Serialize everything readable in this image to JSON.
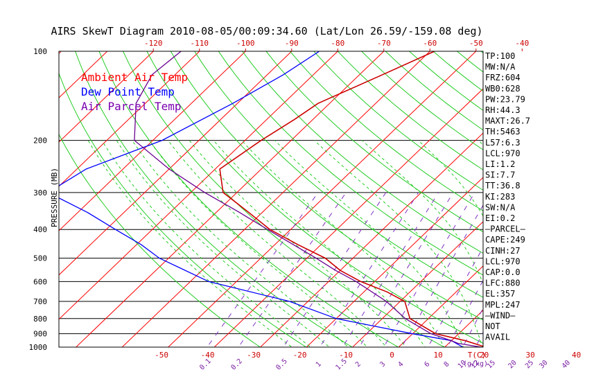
{
  "chart_data": {
    "type": "line",
    "title": "AIRS SkewT Diagram 2010-08-05/00:09:34.60 (Lat/Lon 26.59/-159.08 deg)",
    "ylabel": "PRESSURE (MB)",
    "xlabel_unit": "T(C)",
    "mix_unit": "(g/kg)",
    "pressure_ticks": [
      100,
      200,
      300,
      400,
      500,
      600,
      700,
      800,
      900,
      1000
    ],
    "top_temp_ticks": [
      -120,
      -110,
      -100,
      -90,
      -80,
      -70,
      -60,
      -50,
      -40
    ],
    "bottom_temp_ticks": [
      -50,
      -40,
      -30,
      -20,
      -10,
      0,
      10,
      20,
      30,
      40
    ],
    "mixing_ratio_ticks": [
      "0.1",
      "0.2",
      "0.5",
      "1",
      "1.5",
      "2",
      "3",
      "4",
      "6",
      "8",
      "10",
      "12",
      "15",
      "20",
      "25",
      "30",
      "40"
    ],
    "legend": [
      {
        "label": "Ambient Air Temp",
        "color": "#ff0000"
      },
      {
        "label": "Dew Point Temp",
        "color": "#0000ff"
      },
      {
        "label": "Air Parcel Temp",
        "color": "#7a00b0"
      }
    ],
    "series": [
      {
        "name": "Ambient Air Temp",
        "color": "#cc0000",
        "points": [
          [
            100,
            -59
          ],
          [
            120,
            -65
          ],
          [
            150,
            -72.5
          ],
          [
            170,
            -74
          ],
          [
            200,
            -76.5
          ],
          [
            250,
            -79
          ],
          [
            300,
            -73
          ],
          [
            350,
            -63
          ],
          [
            400,
            -54.5
          ],
          [
            450,
            -45
          ],
          [
            500,
            -36
          ],
          [
            550,
            -30
          ],
          [
            600,
            -23
          ],
          [
            650,
            -15
          ],
          [
            700,
            -9
          ],
          [
            800,
            -4
          ],
          [
            900,
            5
          ],
          [
            950,
            13
          ],
          [
            1000,
            19
          ],
          [
            1013,
            22
          ]
        ]
      },
      {
        "name": "Dew Point Temp",
        "color": "#0000ff",
        "points": [
          [
            100,
            -84
          ],
          [
            120,
            -86.5
          ],
          [
            150,
            -91
          ],
          [
            200,
            -98
          ],
          [
            250,
            -108
          ],
          [
            300,
            -111
          ],
          [
            350,
            -98
          ],
          [
            400,
            -88
          ],
          [
            450,
            -79
          ],
          [
            500,
            -72
          ],
          [
            600,
            -56
          ],
          [
            700,
            -34
          ],
          [
            800,
            -20
          ],
          [
            900,
            0
          ],
          [
            950,
            10
          ],
          [
            1000,
            14
          ]
        ]
      },
      {
        "name": "Air Parcel Temp",
        "color": "#6a0090",
        "points": [
          [
            100,
            -114
          ],
          [
            120,
            -115
          ],
          [
            150,
            -112
          ],
          [
            200,
            -104
          ],
          [
            250,
            -90
          ],
          [
            300,
            -77
          ],
          [
            350,
            -65
          ],
          [
            400,
            -55
          ],
          [
            450,
            -46
          ],
          [
            500,
            -38
          ],
          [
            550,
            -31
          ],
          [
            600,
            -24
          ],
          [
            700,
            -13
          ],
          [
            800,
            -5
          ],
          [
            900,
            4
          ],
          [
            950,
            10
          ],
          [
            970,
            12
          ],
          [
            1000,
            18
          ],
          [
            1013,
            21
          ]
        ]
      }
    ]
  },
  "indices": [
    "TP:100",
    "MW:N/A",
    "FRZ:604",
    "WB0:628",
    "PW:23.79",
    "RH:44.3",
    "MAXT:26.7",
    "TH:5463",
    "L57:6.3",
    "LCL:970",
    "LI:1.2",
    "SI:7.7",
    "TT:36.8",
    "KI:283",
    "SW:N/A",
    "EI:0.2",
    "—PARCEL—",
    "CAPE:249",
    "CINH:27",
    "LCL:970",
    "CAP:0.0",
    "LFC:880",
    "EL:357",
    "MPL:247",
    "—WIND—",
    "NOT",
    "AVAIL"
  ]
}
